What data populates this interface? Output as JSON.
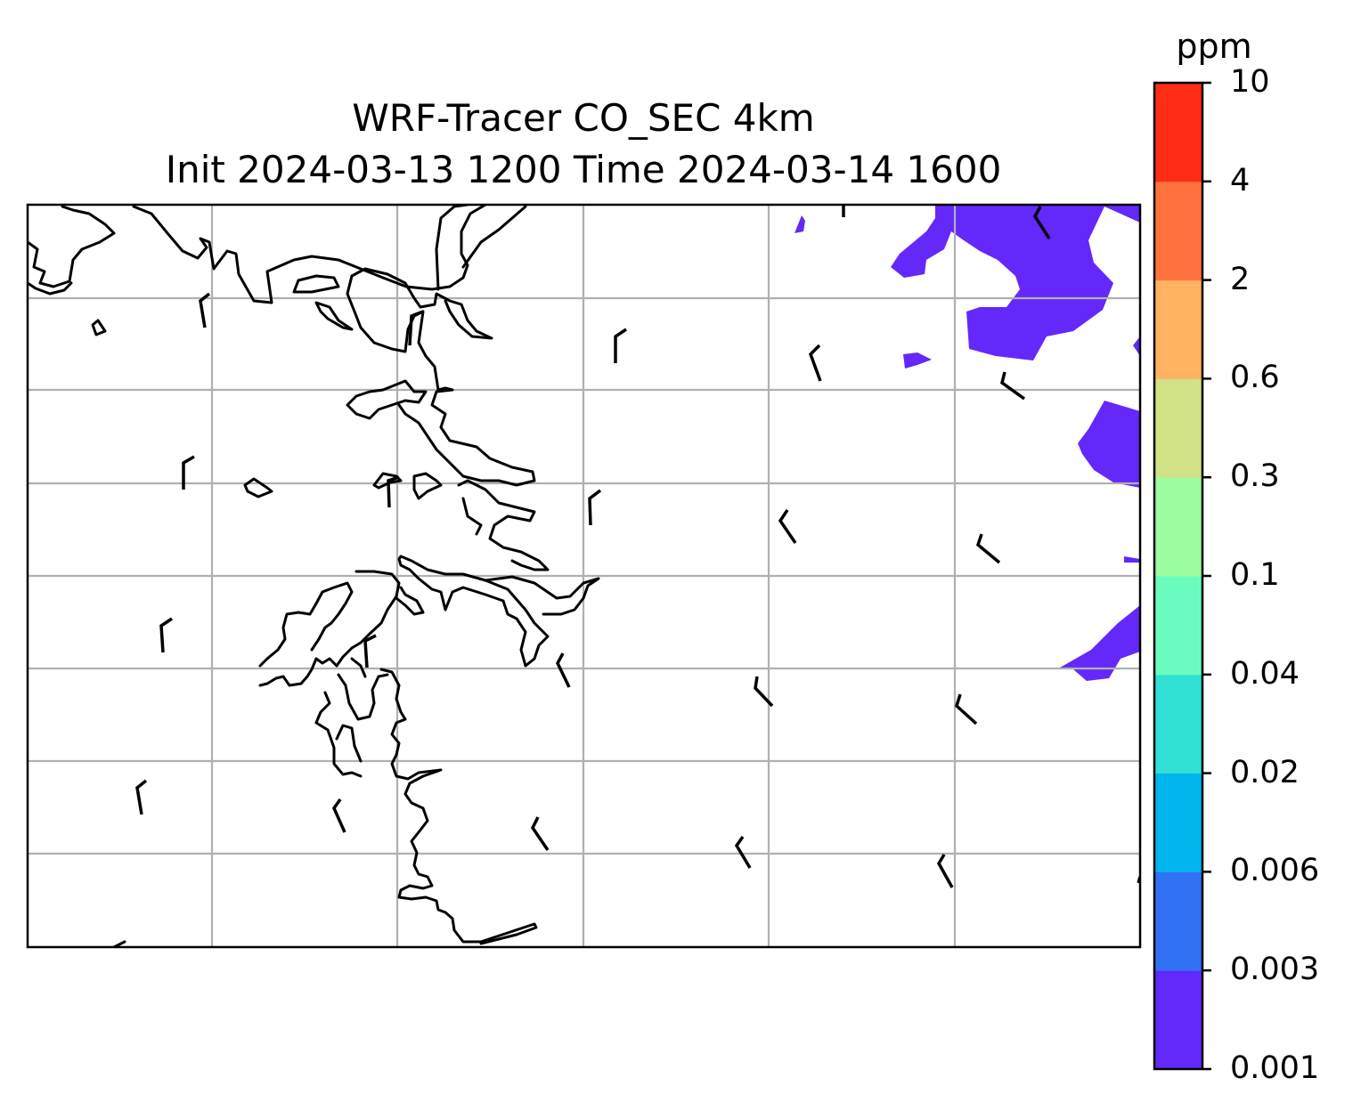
{
  "title": {
    "line1": "WRF-Tracer CO_SEC 4km",
    "line2": "Init 2024-03-13 1200 Time 2024-03-14 1600"
  },
  "colorbar": {
    "unit": "ppm",
    "levels": [
      "0.001",
      "0.003",
      "0.006",
      "0.02",
      "0.04",
      "0.1",
      "0.3",
      "0.6",
      "2",
      "4",
      "10"
    ],
    "colors": [
      "#6428fa",
      "#3270f4",
      "#00b4ec",
      "#30e0d4",
      "#6afcbe",
      "#9cfca0",
      "#d0e186",
      "#ffb262",
      "#ff723e",
      "#ff2c16"
    ]
  },
  "map": {
    "field_color": "#6428fa",
    "coastline_color": "#000000",
    "gridline_color": "#b0b0b0",
    "gridlines": true
  }
}
